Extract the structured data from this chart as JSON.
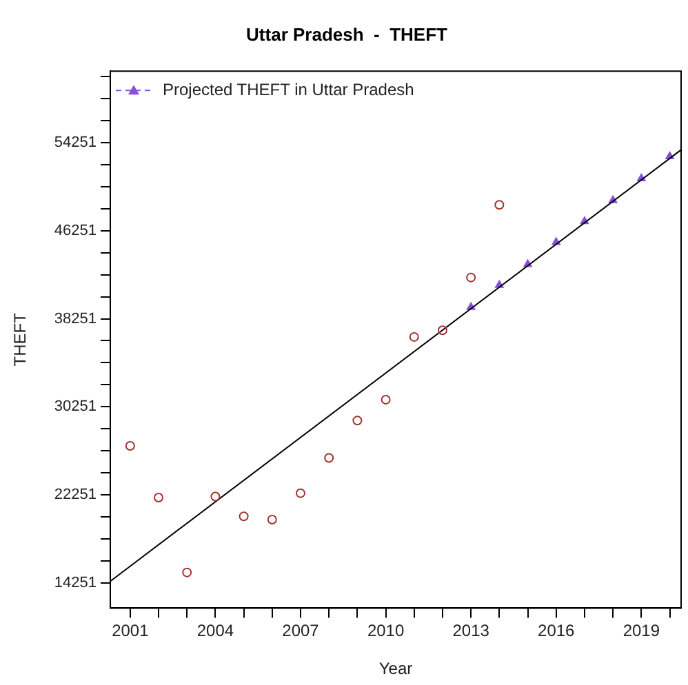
{
  "chart_data": {
    "type": "scatter",
    "title": "Uttar Pradesh  -  THEFT",
    "xlabel": "Year",
    "ylabel": "THEFT",
    "xlim": [
      2000.3,
      2020.4
    ],
    "xticks": [
      2001,
      {
        "value": 2002,
        "label": null
      },
      {
        "value": 2003,
        "label": null
      },
      2004,
      {
        "value": 2005,
        "label": null
      },
      {
        "value": 2006,
        "label": null
      },
      2007,
      {
        "value": 2008,
        "label": null
      },
      {
        "value": 2009,
        "label": null
      },
      2010,
      {
        "value": 2011,
        "label": null
      },
      {
        "value": 2012,
        "label": null
      },
      2013,
      {
        "value": 2014,
        "label": null
      },
      {
        "value": 2015,
        "label": null
      },
      2016,
      {
        "value": 2017,
        "label": null
      },
      {
        "value": 2018,
        "label": null
      },
      2019,
      {
        "value": 2020,
        "label": null
      }
    ],
    "ylim": [
      11960,
      60750
    ],
    "yticks": [
      14251,
      {
        "value": 16251,
        "label": null
      },
      {
        "value": 18251,
        "label": null
      },
      {
        "value": 20251,
        "label": null
      },
      22251,
      {
        "value": 24251,
        "label": null
      },
      {
        "value": 26251,
        "label": null
      },
      {
        "value": 28251,
        "label": null
      },
      30251,
      {
        "value": 32251,
        "label": null
      },
      {
        "value": 34251,
        "label": null
      },
      {
        "value": 36251,
        "label": null
      },
      38251,
      {
        "value": 40251,
        "label": null
      },
      {
        "value": 42251,
        "label": null
      },
      {
        "value": 44251,
        "label": null
      },
      46251,
      {
        "value": 48251,
        "label": null
      },
      {
        "value": 50251,
        "label": null
      },
      {
        "value": 52251,
        "label": null
      },
      54251,
      {
        "value": 56251,
        "label": null
      },
      {
        "value": 58251,
        "label": null
      },
      {
        "value": 60251,
        "label": null
      }
    ],
    "grid": false,
    "legend": "top left",
    "series": [
      {
        "type": "scatter",
        "marker": "circle",
        "color": "#a0322e",
        "x": [
          2001,
          2002,
          2003,
          2004,
          2005,
          2006,
          2007,
          2008,
          2009,
          2010,
          2011,
          2012,
          2013,
          2014
        ],
        "values": [
          26700,
          22000,
          15200,
          22100,
          20300,
          20000,
          22400,
          25600,
          29000,
          30900,
          36600,
          37200,
          42000,
          48600
        ]
      },
      {
        "type": "line",
        "marker": "none",
        "line_style": "solid",
        "color": "#000000",
        "x": [
          2000.3,
          2020.4
        ],
        "values": [
          14400,
          53600
        ]
      },
      {
        "type": "scatter",
        "name": "Projected THEFT in Uttar Pradesh",
        "marker": "triangle",
        "color": "#8a4fd8",
        "x": [
          2013,
          2014,
          2015,
          2016,
          2017,
          2018,
          2019,
          2020
        ],
        "values": [
          39300,
          41300,
          43200,
          45200,
          47100,
          49000,
          51000,
          53000
        ]
      }
    ]
  }
}
